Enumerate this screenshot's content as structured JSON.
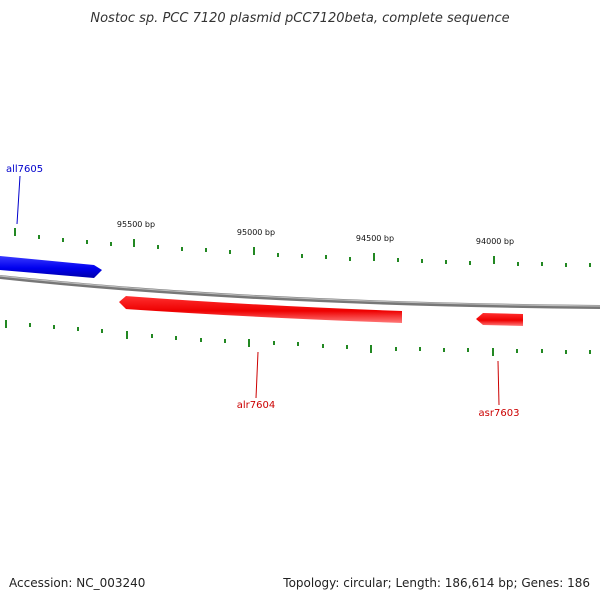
{
  "title": "Nostoc sp. PCC 7120 plasmid pCC7120beta, complete sequence",
  "footer": {
    "accession": "Accession: NC_003240",
    "summary": "Topology: circular; Length: 186,614 bp; Genes: 186"
  },
  "ticks": {
    "labels": [
      "95500 bp",
      "95000 bp",
      "94500 bp",
      "94000 bp"
    ]
  },
  "genes": [
    {
      "id": "all7605",
      "label": "all7605",
      "strand": "forward",
      "color": "#0000cc"
    },
    {
      "id": "alr7604",
      "label": "alr7604",
      "strand": "reverse",
      "color": "#cc0000"
    },
    {
      "id": "asr7603",
      "label": "asr7603",
      "strand": "reverse",
      "color": "#cc0000"
    }
  ],
  "colors": {
    "backbone": "#888888",
    "ticks": "#228822",
    "forward_gene": "#1a1aff",
    "reverse_gene": "#ff1a1a"
  }
}
